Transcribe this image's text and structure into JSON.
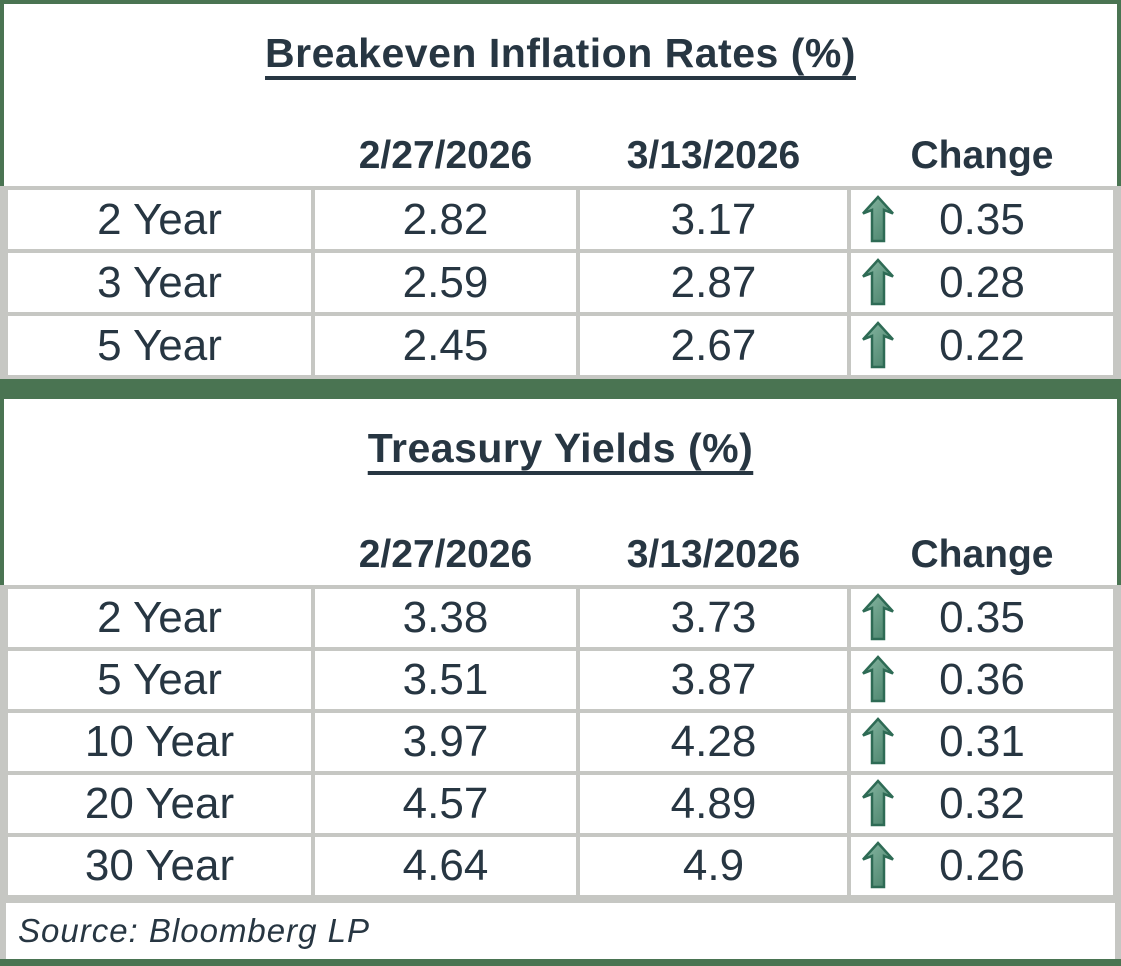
{
  "colors": {
    "frame_green": "#4a7452",
    "gridline_gray": "#c6c7c3",
    "text_dark": "#273642",
    "arrow_fill_light": "#8ab9a5",
    "arrow_fill_dark": "#447e66",
    "arrow_outline": "#2e6b55"
  },
  "chart_data": [
    {
      "type": "table",
      "title": "Breakeven Inflation Rates (%)",
      "columns": [
        "",
        "2/27/2026",
        "3/13/2026",
        "Change"
      ],
      "rows": [
        [
          "2 Year",
          "2.82",
          "3.17",
          "0.35"
        ],
        [
          "3 Year",
          "2.59",
          "2.87",
          "0.28"
        ],
        [
          "5 Year",
          "2.45",
          "2.67",
          "0.22"
        ]
      ],
      "change_direction": "up",
      "change_icon": "up-arrow"
    },
    {
      "type": "table",
      "title": "Treasury Yields (%)",
      "columns": [
        "",
        "2/27/2026",
        "3/13/2026",
        "Change"
      ],
      "rows": [
        [
          "2 Year",
          "3.38",
          "3.73",
          "0.35"
        ],
        [
          "5 Year",
          "3.51",
          "3.87",
          "0.36"
        ],
        [
          "10 Year",
          "3.97",
          "4.28",
          "0.31"
        ],
        [
          "20 Year",
          "4.57",
          "4.89",
          "0.32"
        ],
        [
          "30 Year",
          "4.64",
          "4.9",
          "0.26"
        ]
      ],
      "change_direction": "up",
      "change_icon": "up-arrow"
    }
  ],
  "source": {
    "label": "Source: Bloomberg LP"
  }
}
